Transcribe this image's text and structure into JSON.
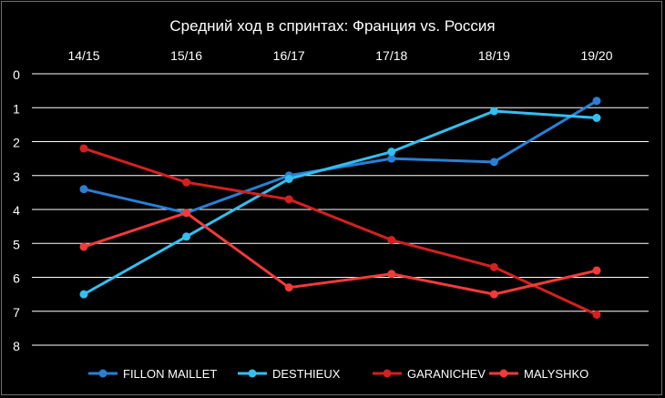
{
  "chart_data": {
    "type": "line",
    "title": "Средний ход в спринтах: Франция vs. Россия",
    "categories": [
      "14/15",
      "15/16",
      "16/17",
      "17/18",
      "18/19",
      "19/20"
    ],
    "y_ticks": [
      "0",
      "1",
      "2",
      "3",
      "4",
      "5",
      "6",
      "7",
      "8"
    ],
    "ylim": [
      0,
      8
    ],
    "y_inverted": true,
    "x_axis_position": "top",
    "grid": true,
    "legend_position": "bottom",
    "background": "#000000",
    "series": [
      {
        "name": "FILLON MAILLET",
        "color": "#2a7fd4",
        "values": [
          3.4,
          4.1,
          3.0,
          2.5,
          2.6,
          0.8
        ]
      },
      {
        "name": "DESTHIEUX",
        "color": "#33bff0",
        "values": [
          6.5,
          4.8,
          3.1,
          2.3,
          1.1,
          1.3
        ]
      },
      {
        "name": "GARANICHEV",
        "color": "#d42020",
        "values": [
          2.2,
          3.2,
          3.7,
          4.9,
          5.7,
          7.1
        ]
      },
      {
        "name": "MALYSHKO",
        "color": "#f23a3a",
        "values": [
          5.1,
          4.1,
          6.3,
          5.9,
          6.5,
          5.8
        ]
      }
    ]
  }
}
